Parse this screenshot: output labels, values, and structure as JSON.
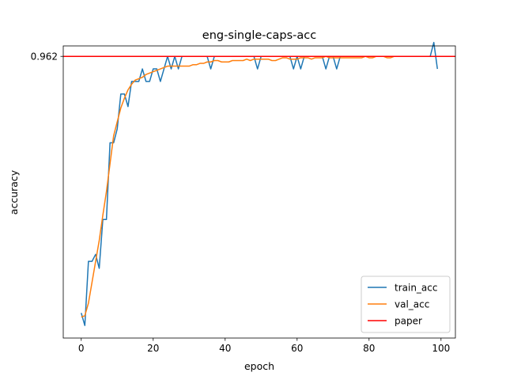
{
  "chart_data": {
    "type": "line",
    "title": "eng-single-caps-acc",
    "xlabel": "epoch",
    "ylabel": "accuracy",
    "xlim": [
      -5,
      104
    ],
    "ylim": [
      0.76,
      0.9695
    ],
    "x_ticks": [
      0,
      20,
      40,
      60,
      80,
      100
    ],
    "y_ticks": [
      0.962
    ],
    "y_tick_labels": [
      "0.962"
    ],
    "grid": false,
    "legend_position": "lower right",
    "series": [
      {
        "name": "train_acc",
        "color": "#1f77b4",
        "x": [
          0,
          1,
          2,
          3,
          4,
          5,
          6,
          7,
          8,
          9,
          10,
          11,
          12,
          13,
          14,
          15,
          16,
          17,
          18,
          19,
          20,
          21,
          22,
          23,
          24,
          25,
          26,
          27,
          28,
          29,
          30,
          31,
          32,
          33,
          34,
          35,
          36,
          37,
          38,
          39,
          40,
          41,
          42,
          43,
          44,
          45,
          46,
          47,
          48,
          49,
          50,
          51,
          52,
          53,
          54,
          55,
          56,
          57,
          58,
          59,
          60,
          61,
          62,
          63,
          64,
          65,
          66,
          67,
          68,
          69,
          70,
          71,
          72,
          73,
          74,
          75,
          76,
          77,
          78,
          79,
          80,
          81,
          82,
          83,
          84,
          85,
          86,
          87,
          88,
          89,
          90,
          91,
          92,
          93,
          94,
          95,
          96,
          97,
          98,
          99
        ],
        "y": [
          0.778,
          0.769,
          0.815,
          0.815,
          0.82,
          0.81,
          0.845,
          0.845,
          0.9,
          0.9,
          0.91,
          0.935,
          0.935,
          0.926,
          0.944,
          0.944,
          0.944,
          0.953,
          0.944,
          0.944,
          0.953,
          0.953,
          0.944,
          0.953,
          0.962,
          0.953,
          0.962,
          0.953,
          0.962,
          0.962,
          0.962,
          0.962,
          0.962,
          0.962,
          0.962,
          0.962,
          0.953,
          0.962,
          0.962,
          0.962,
          0.962,
          0.962,
          0.962,
          0.962,
          0.962,
          0.962,
          0.962,
          0.962,
          0.962,
          0.953,
          0.962,
          0.962,
          0.962,
          0.962,
          0.962,
          0.962,
          0.962,
          0.962,
          0.962,
          0.953,
          0.962,
          0.953,
          0.962,
          0.962,
          0.962,
          0.962,
          0.962,
          0.962,
          0.953,
          0.962,
          0.962,
          0.953,
          0.962,
          0.962,
          0.962,
          0.962,
          0.962,
          0.962,
          0.962,
          0.962,
          0.962,
          0.962,
          0.962,
          0.962,
          0.962,
          0.962,
          0.962,
          0.962,
          0.962,
          0.962,
          0.962,
          0.962,
          0.962,
          0.962,
          0.962,
          0.962,
          0.962,
          0.962,
          0.972,
          0.953
        ]
      },
      {
        "name": "val_acc",
        "color": "#ff7f0e",
        "x": [
          0,
          1,
          2,
          3,
          4,
          5,
          6,
          7,
          8,
          9,
          10,
          11,
          12,
          13,
          14,
          15,
          16,
          17,
          18,
          19,
          20,
          21,
          22,
          23,
          24,
          25,
          26,
          27,
          28,
          29,
          30,
          31,
          32,
          33,
          34,
          35,
          36,
          37,
          38,
          39,
          40,
          41,
          42,
          43,
          44,
          45,
          46,
          47,
          48,
          49,
          50,
          51,
          52,
          53,
          54,
          55,
          56,
          57,
          58,
          59,
          60,
          61,
          62,
          63,
          64,
          65,
          66,
          67,
          68,
          69,
          70,
          71,
          72,
          73,
          74,
          75,
          76,
          77,
          78,
          79,
          80,
          81,
          82,
          83,
          84,
          85,
          86,
          87,
          88,
          89,
          90,
          91,
          92,
          93,
          94,
          95,
          96,
          97,
          98,
          99
        ],
        "y": [
          0.775,
          0.776,
          0.785,
          0.8,
          0.815,
          0.83,
          0.848,
          0.865,
          0.885,
          0.905,
          0.915,
          0.925,
          0.932,
          0.938,
          0.942,
          0.945,
          0.946,
          0.947,
          0.949,
          0.95,
          0.951,
          0.952,
          0.953,
          0.954,
          0.955,
          0.955,
          0.955,
          0.955,
          0.955,
          0.955,
          0.955,
          0.956,
          0.956,
          0.957,
          0.957,
          0.958,
          0.958,
          0.959,
          0.959,
          0.958,
          0.958,
          0.958,
          0.959,
          0.959,
          0.959,
          0.959,
          0.96,
          0.959,
          0.96,
          0.96,
          0.96,
          0.96,
          0.96,
          0.959,
          0.959,
          0.96,
          0.961,
          0.961,
          0.96,
          0.96,
          0.96,
          0.961,
          0.961,
          0.961,
          0.96,
          0.961,
          0.961,
          0.961,
          0.962,
          0.961,
          0.961,
          0.961,
          0.961,
          0.961,
          0.961,
          0.961,
          0.961,
          0.961,
          0.961,
          0.962,
          0.961,
          0.961,
          0.962,
          0.962,
          0.962,
          0.961,
          0.961,
          0.962,
          0.962,
          0.962,
          0.962,
          0.962,
          0.962,
          0.962,
          0.962,
          0.962,
          0.962,
          0.962,
          0.962,
          0.962
        ]
      }
    ],
    "hlines": [
      {
        "name": "paper",
        "color": "#ff0000",
        "y": 0.962
      }
    ]
  }
}
